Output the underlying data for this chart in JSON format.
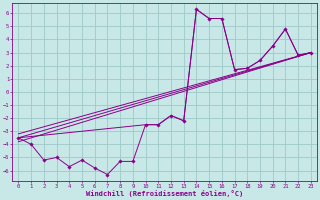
{
  "xlabel": "Windchill (Refroidissement éolien,°C)",
  "bg_color": "#c8e8e8",
  "grid_color": "#a0c8c8",
  "line_color": "#8b008b",
  "xlim": [
    -0.5,
    23.5
  ],
  "ylim": [
    -6.8,
    6.8
  ],
  "xticks": [
    0,
    1,
    2,
    3,
    4,
    5,
    6,
    7,
    8,
    9,
    10,
    11,
    12,
    13,
    14,
    15,
    16,
    17,
    18,
    19,
    20,
    21,
    22,
    23
  ],
  "yticks": [
    -6,
    -5,
    -4,
    -3,
    -2,
    -1,
    0,
    1,
    2,
    3,
    4,
    5,
    6
  ],
  "zigzag_x": [
    0,
    1,
    2,
    3,
    4,
    5,
    6,
    7,
    8,
    9,
    10,
    11,
    12,
    13,
    14,
    15,
    16,
    17,
    18,
    19,
    20,
    21,
    22,
    23
  ],
  "zigzag_y": [
    -3.5,
    -4.0,
    -5.2,
    -5.0,
    -5.7,
    -5.2,
    -5.8,
    -6.3,
    -5.3,
    -5.3,
    -2.5,
    -2.5,
    -1.8,
    -2.2,
    6.3,
    5.6,
    5.6,
    1.7,
    1.8,
    2.4,
    3.5,
    4.8,
    2.8,
    3.0
  ],
  "trend1_x": [
    0,
    23
  ],
  "trend1_y": [
    -3.5,
    3.0
  ],
  "trend2_x": [
    0,
    23
  ],
  "trend2_y": [
    -3.2,
    3.0
  ],
  "trend3_x": [
    0,
    23
  ],
  "trend3_y": [
    -3.8,
    3.0
  ],
  "upper_x": [
    0,
    10,
    11,
    12,
    13,
    14,
    15,
    16,
    17,
    18,
    19,
    20,
    21,
    22,
    23
  ],
  "upper_y": [
    -3.5,
    -2.5,
    -2.5,
    -1.8,
    -2.2,
    6.3,
    5.6,
    5.6,
    1.7,
    1.8,
    2.4,
    3.5,
    4.8,
    2.8,
    3.0
  ]
}
